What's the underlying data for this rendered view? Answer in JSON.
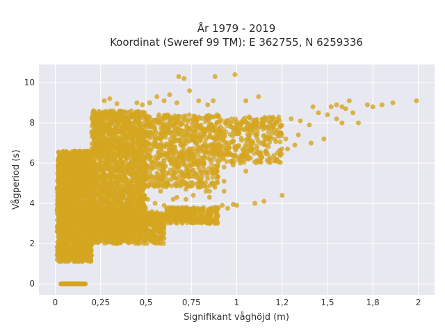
{
  "chart_data": {
    "type": "scatter",
    "title": "År 1979 - 2019",
    "subtitle": "Koordinat (Sweref 99 TM): E 362755, N 6259336",
    "xlabel": "Signifikant våghöjd (m)",
    "ylabel": "Vågperiod (s)",
    "xlim": [
      -0.09,
      2.09
    ],
    "ylim": [
      -0.55,
      10.9
    ],
    "x_ticks": [
      0,
      0.25,
      0.5,
      0.75,
      1,
      1.25,
      1.5,
      1.75,
      2
    ],
    "x_tick_labels": [
      "0",
      "0,25",
      "0,5",
      "0,75",
      "1",
      "1,2",
      "1,5",
      "1,8",
      "2"
    ],
    "y_ticks": [
      0,
      2,
      4,
      6,
      8,
      10
    ],
    "y_tick_labels": [
      "0",
      "2",
      "4",
      "6",
      "8",
      "10"
    ],
    "grid": true,
    "legend": "none",
    "marker_color": "#D4A520",
    "plot_background": "#E8E8F0",
    "series": [
      {
        "dense_regions": [
          {
            "x_range": [
              0.01,
              0.2
            ],
            "y_range": [
              1.1,
              6.6
            ],
            "density": "very high"
          },
          {
            "x_range": [
              0.2,
              0.5
            ],
            "y_range": [
              2.5,
              8.6
            ],
            "density": "very high"
          },
          {
            "x_range": [
              0.5,
              0.9
            ],
            "y_range": [
              4.8,
              8.4
            ],
            "density": "high"
          },
          {
            "x_range": [
              0.9,
              1.25
            ],
            "y_range": [
              6.0,
              8.3
            ],
            "density": "medium"
          },
          {
            "x_range": [
              0.2,
              0.6
            ],
            "y_range": [
              2.0,
              3.6
            ],
            "density": "high"
          },
          {
            "x_range": [
              0.6,
              0.9
            ],
            "y_range": [
              3.0,
              3.8
            ],
            "density": "medium"
          }
        ],
        "zero_period_band": {
          "x_range": [
            0.03,
            0.17
          ],
          "y": 0
        },
        "points": [
          {
            "x": 0.68,
            "y": 10.3
          },
          {
            "x": 0.71,
            "y": 10.2
          },
          {
            "x": 0.88,
            "y": 10.3
          },
          {
            "x": 0.99,
            "y": 10.4
          },
          {
            "x": 0.74,
            "y": 9.6
          },
          {
            "x": 0.63,
            "y": 9.4
          },
          {
            "x": 0.56,
            "y": 9.3
          },
          {
            "x": 0.3,
            "y": 9.2
          },
          {
            "x": 0.87,
            "y": 9.1
          },
          {
            "x": 1.12,
            "y": 9.3
          },
          {
            "x": 1.05,
            "y": 9.1
          },
          {
            "x": 0.45,
            "y": 9.0
          },
          {
            "x": 1.62,
            "y": 9.1
          },
          {
            "x": 1.72,
            "y": 8.9
          },
          {
            "x": 1.75,
            "y": 8.8
          },
          {
            "x": 1.8,
            "y": 8.9
          },
          {
            "x": 1.86,
            "y": 9.0
          },
          {
            "x": 1.99,
            "y": 9.1
          },
          {
            "x": 1.52,
            "y": 8.8
          },
          {
            "x": 1.55,
            "y": 8.9
          },
          {
            "x": 1.58,
            "y": 8.8
          },
          {
            "x": 1.6,
            "y": 8.7
          },
          {
            "x": 1.64,
            "y": 8.5
          },
          {
            "x": 1.67,
            "y": 8.0
          },
          {
            "x": 1.58,
            "y": 8.0
          },
          {
            "x": 1.42,
            "y": 8.8
          },
          {
            "x": 1.45,
            "y": 8.5
          },
          {
            "x": 1.5,
            "y": 8.4
          },
          {
            "x": 1.55,
            "y": 8.2
          },
          {
            "x": 1.35,
            "y": 8.1
          },
          {
            "x": 1.4,
            "y": 7.9
          },
          {
            "x": 1.3,
            "y": 8.2
          },
          {
            "x": 1.34,
            "y": 7.4
          },
          {
            "x": 1.24,
            "y": 7.5
          },
          {
            "x": 1.17,
            "y": 7.3
          },
          {
            "x": 1.08,
            "y": 6.9
          },
          {
            "x": 0.98,
            "y": 5.9
          },
          {
            "x": 1.02,
            "y": 6.0
          },
          {
            "x": 0.96,
            "y": 6.5
          },
          {
            "x": 0.93,
            "y": 5.8
          },
          {
            "x": 0.88,
            "y": 5.5
          },
          {
            "x": 0.93,
            "y": 5.1
          },
          {
            "x": 0.88,
            "y": 4.8
          },
          {
            "x": 0.85,
            "y": 4.6
          },
          {
            "x": 0.93,
            "y": 4.6
          },
          {
            "x": 0.83,
            "y": 4.6
          },
          {
            "x": 0.76,
            "y": 4.4
          },
          {
            "x": 0.72,
            "y": 4.7
          },
          {
            "x": 0.67,
            "y": 4.3
          },
          {
            "x": 0.65,
            "y": 4.2
          },
          {
            "x": 0.7,
            "y": 5.1
          },
          {
            "x": 0.62,
            "y": 5.0
          },
          {
            "x": 0.58,
            "y": 4.6
          },
          {
            "x": 1.25,
            "y": 4.4
          },
          {
            "x": 1.15,
            "y": 4.1
          },
          {
            "x": 1.1,
            "y": 4.0
          },
          {
            "x": 1.0,
            "y": 3.9
          },
          {
            "x": 0.98,
            "y": 3.95
          },
          {
            "x": 0.92,
            "y": 3.9
          },
          {
            "x": 0.88,
            "y": 3.8
          },
          {
            "x": 0.95,
            "y": 3.75
          },
          {
            "x": 0.33,
            "y": 4.0
          },
          {
            "x": 0.35,
            "y": 4.3
          },
          {
            "x": 0.4,
            "y": 4.1
          },
          {
            "x": 0.47,
            "y": 3.9
          },
          {
            "x": 0.51,
            "y": 4.2
          },
          {
            "x": 0.55,
            "y": 4.0
          },
          {
            "x": 0.6,
            "y": 3.9
          },
          {
            "x": 0.39,
            "y": 4.7
          },
          {
            "x": 0.43,
            "y": 4.6
          },
          {
            "x": 0.51,
            "y": 4.9
          },
          {
            "x": 0.22,
            "y": 2.5
          },
          {
            "x": 0.26,
            "y": 2.3
          },
          {
            "x": 0.24,
            "y": 2.7
          },
          {
            "x": 0.3,
            "y": 2.2
          },
          {
            "x": 0.36,
            "y": 2.2
          },
          {
            "x": 0.42,
            "y": 2.4
          },
          {
            "x": 0.46,
            "y": 2.5
          },
          {
            "x": 0.5,
            "y": 2.7
          },
          {
            "x": 0.29,
            "y": 2.1
          },
          {
            "x": 0.85,
            "y": 4.3
          },
          {
            "x": 0.79,
            "y": 4.8
          },
          {
            "x": 0.72,
            "y": 4.2
          },
          {
            "x": 0.7,
            "y": 3.6
          },
          {
            "x": 0.68,
            "y": 3.4
          },
          {
            "x": 0.74,
            "y": 3.3
          },
          {
            "x": 1.05,
            "y": 5.6
          },
          {
            "x": 1.12,
            "y": 6.1
          },
          {
            "x": 1.03,
            "y": 6.3
          },
          {
            "x": 1.27,
            "y": 7.2
          },
          {
            "x": 1.2,
            "y": 7.8
          },
          {
            "x": 0.48,
            "y": 8.9
          },
          {
            "x": 0.52,
            "y": 9.0
          },
          {
            "x": 0.6,
            "y": 9.1
          },
          {
            "x": 0.67,
            "y": 9.0
          },
          {
            "x": 0.79,
            "y": 9.1
          },
          {
            "x": 0.84,
            "y": 8.9
          },
          {
            "x": 0.27,
            "y": 9.1
          },
          {
            "x": 0.34,
            "y": 8.95
          },
          {
            "x": 1.48,
            "y": 7.2
          },
          {
            "x": 1.41,
            "y": 7.0
          },
          {
            "x": 1.32,
            "y": 6.9
          },
          {
            "x": 1.28,
            "y": 6.7
          },
          {
            "x": 1.16,
            "y": 6.6
          },
          {
            "x": 1.0,
            "y": 7.7
          },
          {
            "x": 1.11,
            "y": 8.0
          },
          {
            "x": 0.94,
            "y": 8.0
          }
        ]
      }
    ]
  }
}
